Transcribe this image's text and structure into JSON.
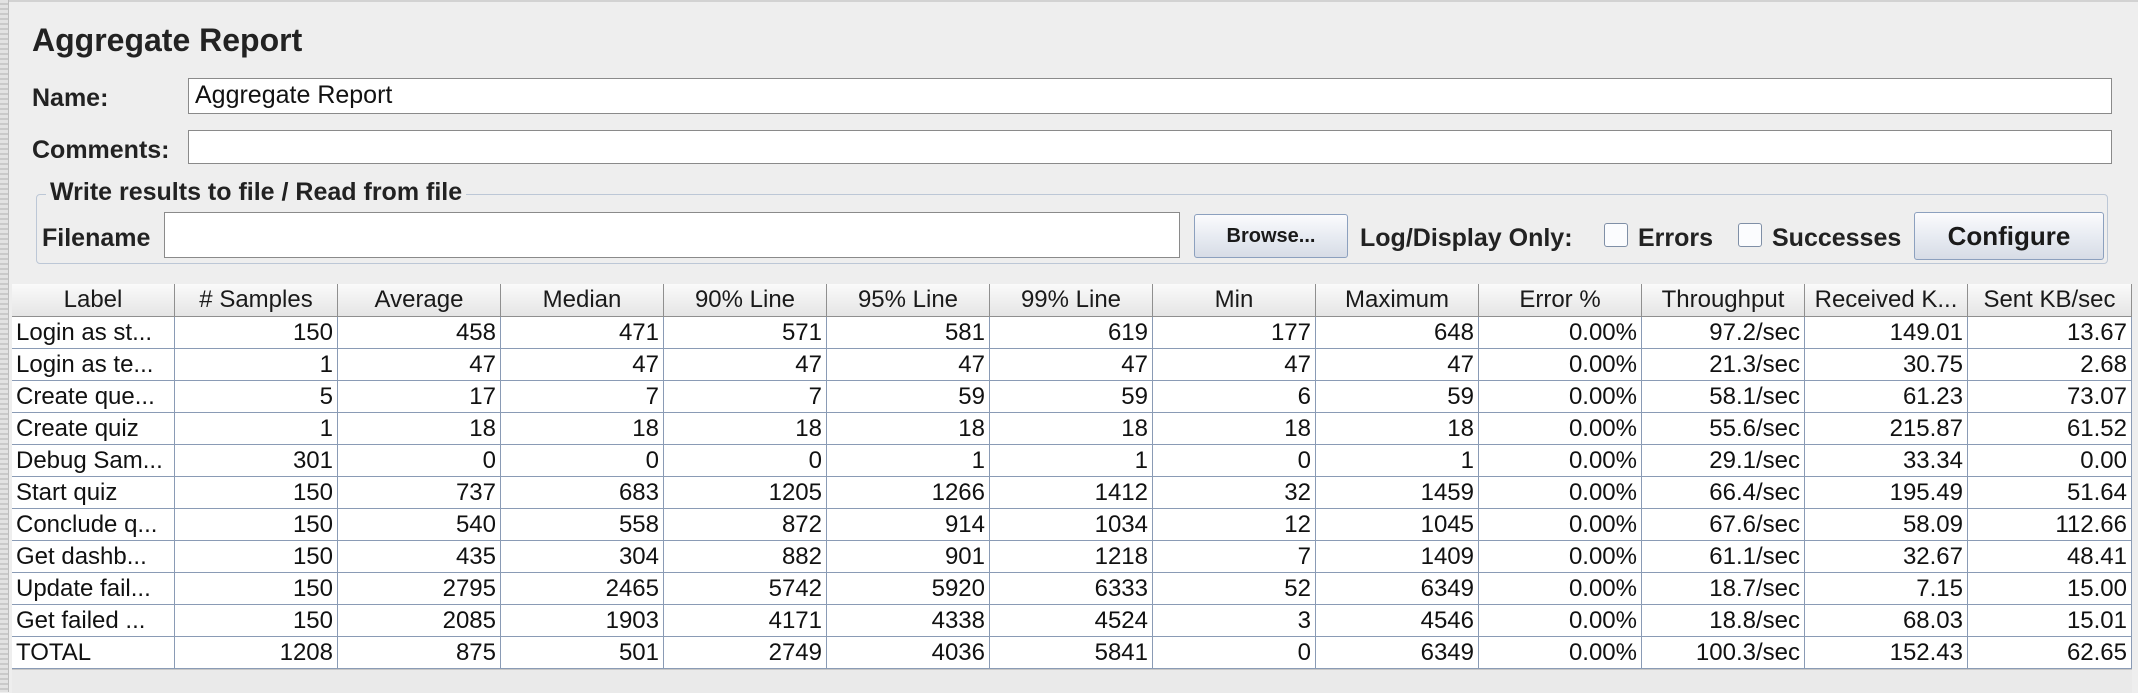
{
  "panel": {
    "title": "Aggregate Report",
    "name_label": "Name:",
    "name_value": "Aggregate Report",
    "comments_label": "Comments:",
    "comments_value": ""
  },
  "file_section": {
    "title": "Write results to file / Read from file",
    "filename_label": "Filename",
    "filename_value": "",
    "browse_label": "Browse...",
    "log_display_label": "Log/Display Only:",
    "errors_label": "Errors",
    "errors_checked": false,
    "successes_label": "Successes",
    "successes_checked": false,
    "configure_label": "Configure"
  },
  "table": {
    "columns": [
      "Label",
      "# Samples",
      "Average",
      "Median",
      "90% Line",
      "95% Line",
      "99% Line",
      "Min",
      "Maximum",
      "Error %",
      "Throughput",
      "Received K...",
      "Sent KB/sec"
    ],
    "rows": [
      [
        "Login as st...",
        "150",
        "458",
        "471",
        "571",
        "581",
        "619",
        "177",
        "648",
        "0.00%",
        "97.2/sec",
        "149.01",
        "13.67"
      ],
      [
        "Login as te...",
        "1",
        "47",
        "47",
        "47",
        "47",
        "47",
        "47",
        "47",
        "0.00%",
        "21.3/sec",
        "30.75",
        "2.68"
      ],
      [
        "Create que...",
        "5",
        "17",
        "7",
        "7",
        "59",
        "59",
        "6",
        "59",
        "0.00%",
        "58.1/sec",
        "61.23",
        "73.07"
      ],
      [
        "Create quiz",
        "1",
        "18",
        "18",
        "18",
        "18",
        "18",
        "18",
        "18",
        "0.00%",
        "55.6/sec",
        "215.87",
        "61.52"
      ],
      [
        "Debug Sam...",
        "301",
        "0",
        "0",
        "0",
        "1",
        "1",
        "0",
        "1",
        "0.00%",
        "29.1/sec",
        "33.34",
        "0.00"
      ],
      [
        "Start quiz",
        "150",
        "737",
        "683",
        "1205",
        "1266",
        "1412",
        "32",
        "1459",
        "0.00%",
        "66.4/sec",
        "195.49",
        "51.64"
      ],
      [
        "Conclude q...",
        "150",
        "540",
        "558",
        "872",
        "914",
        "1034",
        "12",
        "1045",
        "0.00%",
        "67.6/sec",
        "58.09",
        "112.66"
      ],
      [
        "Get dashb...",
        "150",
        "435",
        "304",
        "882",
        "901",
        "1218",
        "7",
        "1409",
        "0.00%",
        "61.1/sec",
        "32.67",
        "48.41"
      ],
      [
        "Update fail...",
        "150",
        "2795",
        "2465",
        "5742",
        "5920",
        "6333",
        "52",
        "6349",
        "0.00%",
        "18.7/sec",
        "7.15",
        "15.00"
      ],
      [
        "Get failed ...",
        "150",
        "2085",
        "1903",
        "4171",
        "4338",
        "4524",
        "3",
        "4546",
        "0.00%",
        "18.8/sec",
        "68.03",
        "15.01"
      ],
      [
        "TOTAL",
        "1208",
        "875",
        "501",
        "2749",
        "4036",
        "5841",
        "0",
        "6349",
        "0.00%",
        "100.3/sec",
        "152.43",
        "62.65"
      ]
    ]
  }
}
